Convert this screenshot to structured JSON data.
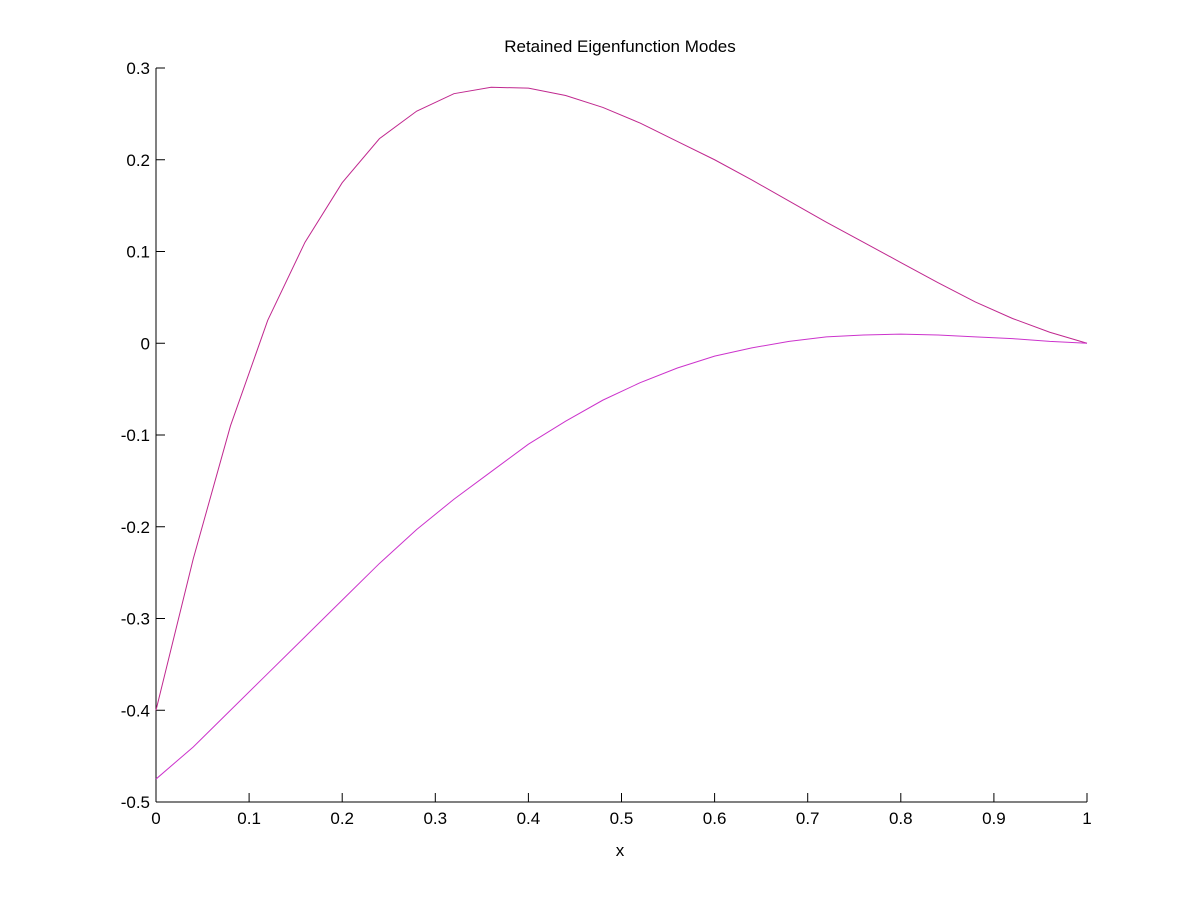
{
  "chart_data": {
    "type": "line",
    "title": "Retained Eigenfunction Modes",
    "xlabel": "x",
    "ylabel": "",
    "xlim": [
      0,
      1
    ],
    "ylim": [
      -0.5,
      0.3
    ],
    "xticks": [
      0,
      0.1,
      0.2,
      0.3,
      0.4,
      0.5,
      0.6,
      0.7,
      0.8,
      0.9,
      1
    ],
    "xtick_labels": [
      "0",
      "0.1",
      "0.2",
      "0.3",
      "0.4",
      "0.5",
      "0.6",
      "0.7",
      "0.8",
      "0.9",
      "1"
    ],
    "yticks": [
      -0.5,
      -0.4,
      -0.3,
      -0.2,
      -0.1,
      0,
      0.1,
      0.2,
      0.3
    ],
    "ytick_labels": [
      "-0.5",
      "-0.4",
      "-0.3",
      "-0.2",
      "-0.1",
      "0",
      "0.1",
      "0.2",
      "0.3"
    ],
    "grid": false,
    "legend": "none",
    "series": [
      {
        "color": "#c0288f",
        "x": [
          0,
          0.04,
          0.08,
          0.12,
          0.16,
          0.2,
          0.24,
          0.28,
          0.32,
          0.36,
          0.4,
          0.44,
          0.48,
          0.52,
          0.56,
          0.6,
          0.64,
          0.68,
          0.72,
          0.76,
          0.8,
          0.84,
          0.88,
          0.92,
          0.96,
          1
        ],
        "y": [
          -0.4,
          -0.235,
          -0.09,
          0.025,
          0.11,
          0.175,
          0.223,
          0.253,
          0.272,
          0.279,
          0.278,
          0.27,
          0.257,
          0.24,
          0.22,
          0.2,
          0.178,
          0.155,
          0.132,
          0.11,
          0.088,
          0.066,
          0.045,
          0.027,
          0.012,
          0
        ]
      },
      {
        "color": "#cc33cc",
        "x": [
          0,
          0.04,
          0.08,
          0.12,
          0.16,
          0.2,
          0.24,
          0.28,
          0.32,
          0.36,
          0.4,
          0.44,
          0.48,
          0.52,
          0.56,
          0.6,
          0.64,
          0.68,
          0.72,
          0.76,
          0.8,
          0.84,
          0.88,
          0.92,
          0.96,
          1
        ],
        "y": [
          -0.475,
          -0.44,
          -0.4,
          -0.36,
          -0.32,
          -0.28,
          -0.24,
          -0.203,
          -0.17,
          -0.14,
          -0.11,
          -0.085,
          -0.062,
          -0.043,
          -0.027,
          -0.014,
          -0.005,
          0.002,
          0.007,
          0.009,
          0.01,
          0.009,
          0.007,
          0.005,
          0.002,
          0
        ]
      }
    ]
  }
}
